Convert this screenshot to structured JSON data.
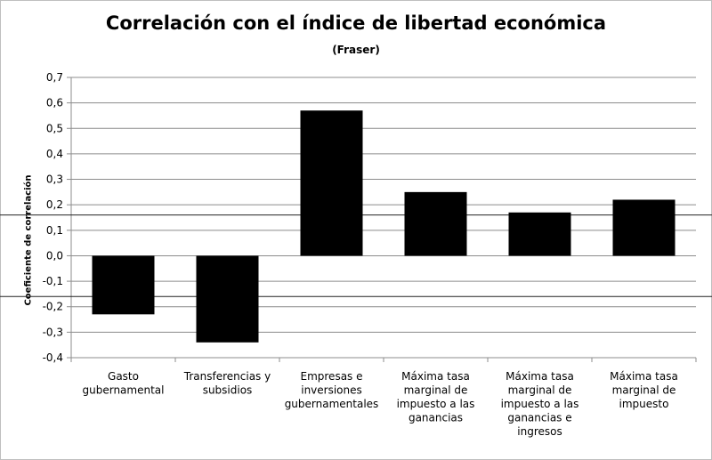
{
  "chart_data": {
    "type": "bar",
    "title": "Correlación con el índice de libertad económica",
    "subtitle": "(Fraser)",
    "ylabel": "Coeficiente de correlación",
    "xlabel": "",
    "ylim": [
      -0.4,
      0.7
    ],
    "yticks": [
      "0,7",
      "0,6",
      "0,5",
      "0,4",
      "0,3",
      "0,2",
      "0,1",
      "0,0",
      "-0,1",
      "-0,2",
      "-0,3",
      "-0,4"
    ],
    "ytick_values": [
      0.7,
      0.6,
      0.5,
      0.4,
      0.3,
      0.2,
      0.1,
      0.0,
      -0.1,
      -0.2,
      -0.3,
      -0.4
    ],
    "categories": [
      [
        "Gasto",
        "gubernamental"
      ],
      [
        "Transferencias y",
        "subsidios"
      ],
      [
        "Empresas e",
        "inversiones",
        "gubernamentales"
      ],
      [
        "Máxima tasa",
        "marginal de",
        "impuesto a las",
        "ganancias"
      ],
      [
        "Máxima tasa",
        "marginal de",
        "impuesto a las",
        "ganancias e",
        "ingresos"
      ],
      [
        "Máxima tasa",
        "marginal de",
        "impuesto"
      ]
    ],
    "values": [
      -0.23,
      -0.34,
      0.57,
      0.25,
      0.17,
      0.22
    ],
    "bar_color": "#000000",
    "grid": true,
    "reference_lines": [
      0.16,
      -0.16
    ],
    "legend": "none"
  }
}
